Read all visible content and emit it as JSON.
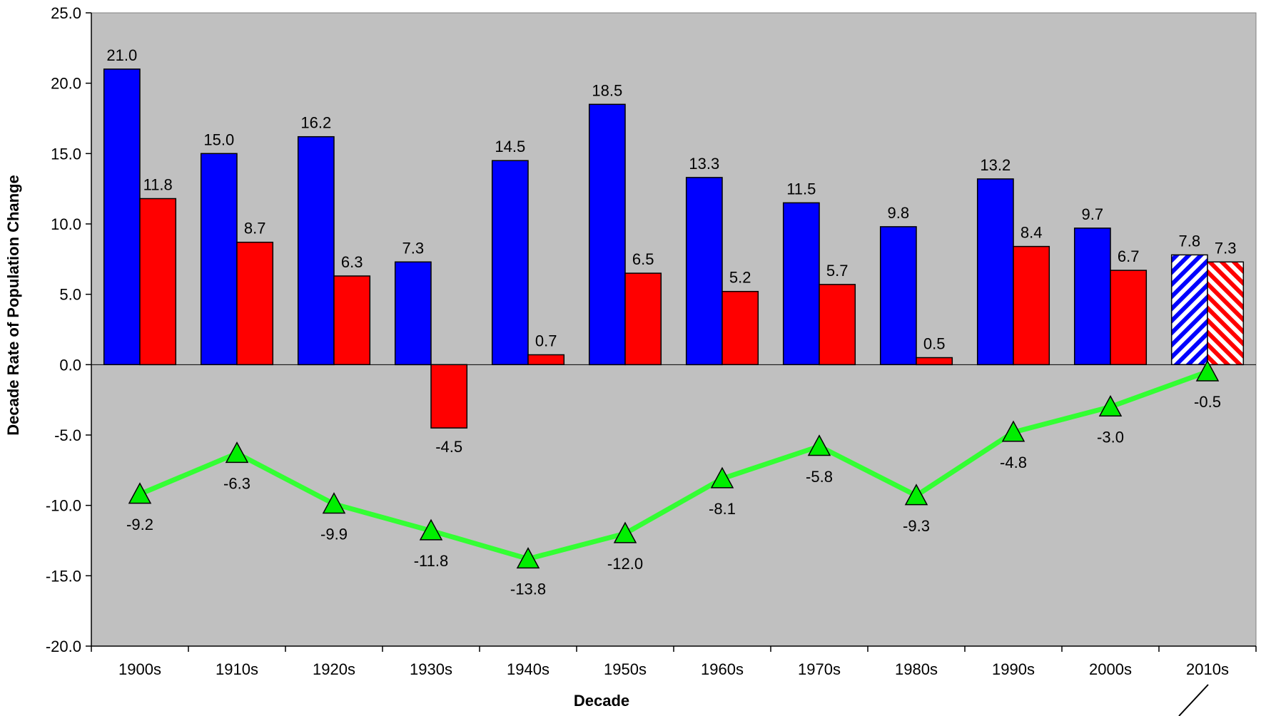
{
  "chart_data": {
    "type": "bar",
    "xlabel": "Decade",
    "ylabel": "Decade Rate of Population Change",
    "ylim": [
      -20,
      25
    ],
    "ytick_step": 5,
    "ytick_labels": [
      "25.0",
      "20.0",
      "15.0",
      "10.0",
      "5.0",
      "0.0",
      "-5.0",
      "-10.0",
      "-15.0",
      "-20.0"
    ],
    "grid": false,
    "plot_background": "#c0c0c0",
    "categories": [
      "1900s",
      "1910s",
      "1920s",
      "1930s",
      "1940s",
      "1950s",
      "1960s",
      "1970s",
      "1980s",
      "1990s",
      "2000s",
      "2010s"
    ],
    "hatched_categories": [
      "2010s"
    ],
    "series": [
      {
        "type": "bar",
        "color": "#0000ff",
        "values": [
          21.0,
          15.0,
          16.2,
          7.3,
          14.5,
          18.5,
          13.3,
          11.5,
          9.8,
          13.2,
          9.7,
          7.8
        ],
        "labels": [
          "21.0",
          "15.0",
          "16.2",
          "7.3",
          "14.5",
          "18.5",
          "13.3",
          "11.5",
          "9.8",
          "13.2",
          "9.7",
          "7.8"
        ]
      },
      {
        "type": "bar",
        "color": "#ff0000",
        "values": [
          11.8,
          8.7,
          6.3,
          -4.5,
          0.7,
          6.5,
          5.2,
          5.7,
          0.5,
          8.4,
          6.7,
          7.3
        ],
        "labels": [
          "11.8",
          "8.7",
          "6.3",
          "-4.5",
          "0.7",
          "6.5",
          "5.2",
          "5.7",
          "0.5",
          "8.4",
          "6.7",
          "7.3"
        ]
      },
      {
        "type": "line",
        "color": "#33ff33",
        "marker": "triangle",
        "values": [
          -9.2,
          -6.3,
          -9.9,
          -11.8,
          -13.8,
          -12.0,
          -8.1,
          -5.8,
          -9.3,
          -4.8,
          -3.0,
          -0.5
        ],
        "labels": [
          "-9.2",
          "-6.3",
          "-9.9",
          "-11.8",
          "-13.8",
          "-12.0",
          "-8.1",
          "-5.8",
          "-9.3",
          "-4.8",
          "-3.0",
          "-0.5"
        ]
      }
    ]
  }
}
